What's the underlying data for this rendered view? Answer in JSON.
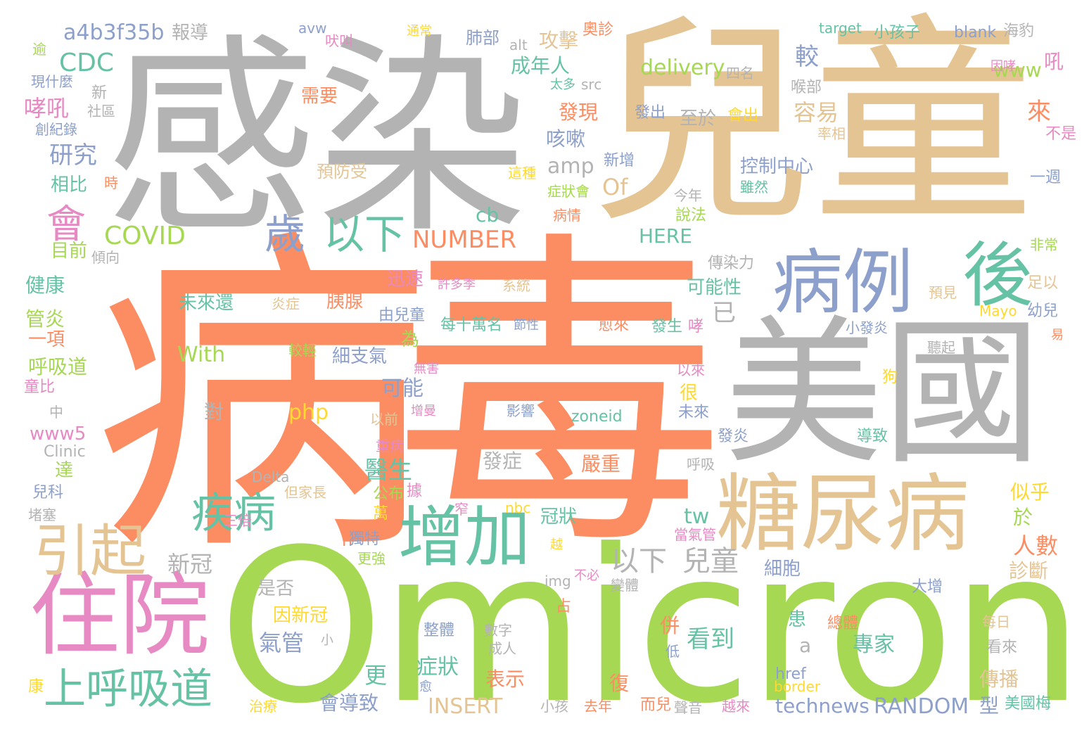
{
  "palette": {
    "orange": "#fc8d62",
    "green": "#a6d854",
    "grey": "#b3b3b3",
    "tan": "#e5c494",
    "teal": "#66c2a5",
    "blue": "#8da0cb",
    "pink": "#e78ac3",
    "yellow": "#ffd92f"
  },
  "words": [
    {
      "id": "bing",
      "text": "病",
      "color": "#fc8d62"
    },
    {
      "id": "du",
      "text": "毒",
      "color": "#fc8d62"
    },
    {
      "id": "ganran",
      "text": "感染",
      "color": "#b3b3b3"
    },
    {
      "id": "ertong",
      "text": "兒童",
      "color": "#e5c494"
    },
    {
      "id": "omicron",
      "text": "Omicron",
      "color": "#a6d854"
    },
    {
      "id": "meiguo",
      "text": "美國",
      "color": "#b3b3b3"
    },
    {
      "id": "zhuyuan",
      "text": "住院",
      "color": "#e78ac3"
    },
    {
      "id": "tangniaobing",
      "text": "糖尿病",
      "color": "#e5c494"
    },
    {
      "id": "bingli",
      "text": "病例",
      "color": "#8da0cb"
    },
    {
      "id": "hou",
      "text": "後",
      "color": "#66c2a5"
    },
    {
      "id": "zengjia",
      "text": "增加",
      "color": "#66c2a5"
    },
    {
      "id": "yinqi",
      "text": "引起",
      "color": "#e5c494"
    },
    {
      "id": "shanghuxidao",
      "text": "上呼吸道",
      "color": "#66c2a5"
    },
    {
      "id": "jibing",
      "text": "疾病",
      "color": "#66c2a5"
    },
    {
      "id": "sui",
      "text": "歲",
      "color": "#8da0cb"
    },
    {
      "id": "yixia1",
      "text": "以下",
      "color": "#66c2a5"
    },
    {
      "id": "hui",
      "text": "會",
      "color": "#e78ac3"
    },
    {
      "id": "covid",
      "text": "COVID",
      "color": "#a6d854"
    },
    {
      "id": "cdc",
      "text": "CDC",
      "color": "#66c2a5"
    },
    {
      "id": "a4b3",
      "text": "a4b3f35b",
      "color": "#8da0cb"
    },
    {
      "id": "baodao",
      "text": "報導",
      "color": "#b3b3b3"
    },
    {
      "id": "xiaochuan",
      "text": "哮吼",
      "color": "#e78ac3"
    },
    {
      "id": "yanjiu",
      "text": "研究",
      "color": "#8da0cb"
    },
    {
      "id": "xiangbi",
      "text": "相比",
      "color": "#66c2a5"
    },
    {
      "id": "mubiao",
      "text": "目前",
      "color": "#a6d854"
    },
    {
      "id": "jiankang",
      "text": "健康",
      "color": "#66c2a5"
    },
    {
      "id": "guanyan",
      "text": "管炎",
      "color": "#a6d854"
    },
    {
      "id": "yixiang",
      "text": "一項",
      "color": "#fc8d62"
    },
    {
      "id": "huxidao",
      "text": "呼吸道",
      "color": "#a6d854"
    },
    {
      "id": "tongbi",
      "text": "童比",
      "color": "#e78ac3"
    },
    {
      "id": "www5",
      "text": "www5",
      "color": "#e78ac3"
    },
    {
      "id": "clinic",
      "text": "Clinic",
      "color": "#b3b3b3"
    },
    {
      "id": "da",
      "text": "達",
      "color": "#a6d854"
    },
    {
      "id": "erke",
      "text": "兒科",
      "color": "#8da0cb"
    },
    {
      "id": "duse",
      "text": "堵塞",
      "color": "#b3b3b3"
    },
    {
      "id": "kang",
      "text": "康",
      "color": "#ffd92f"
    },
    {
      "id": "zhong",
      "text": "中",
      "color": "#b3b3b3"
    },
    {
      "id": "yu",
      "text": "逾",
      "color": "#a6d854"
    },
    {
      "id": "xianshenme",
      "text": "現什麼",
      "color": "#8da0cb"
    },
    {
      "id": "xin",
      "text": "新",
      "color": "#b3b3b3"
    },
    {
      "id": "shequ",
      "text": "社區",
      "color": "#b3b3b3"
    },
    {
      "id": "chuangjilu",
      "text": "創紀錄",
      "color": "#8da0cb"
    },
    {
      "id": "shi",
      "text": "時",
      "color": "#fc8d62"
    },
    {
      "id": "qingxiang",
      "text": "傾向",
      "color": "#b3b3b3"
    },
    {
      "id": "avw",
      "text": "avw",
      "color": "#8da0cb"
    },
    {
      "id": "feijiao",
      "text": "吠叫",
      "color": "#e78ac3"
    },
    {
      "id": "tongchang",
      "text": "通常",
      "color": "#ffd92f"
    },
    {
      "id": "feibu",
      "text": "肺部",
      "color": "#8da0cb"
    },
    {
      "id": "alt",
      "text": "alt",
      "color": "#b3b3b3"
    },
    {
      "id": "gongji",
      "text": "攻擊",
      "color": "#e5c494"
    },
    {
      "id": "aozhen",
      "text": "奧診",
      "color": "#fc8d62"
    },
    {
      "id": "chengnianren",
      "text": "成年人",
      "color": "#66c2a5"
    },
    {
      "id": "taiduo",
      "text": "太多",
      "color": "#66c2a5"
    },
    {
      "id": "src",
      "text": "src",
      "color": "#b3b3b3"
    },
    {
      "id": "faxian",
      "text": "發現",
      "color": "#fc8d62"
    },
    {
      "id": "xuyao",
      "text": "需要",
      "color": "#fc8d62"
    },
    {
      "id": "jiao",
      "text": "較",
      "color": "#8da0cb"
    },
    {
      "id": "delivery",
      "text": "delivery",
      "color": "#a6d854"
    },
    {
      "id": "siming",
      "text": "四名",
      "color": "#b3b3b3"
    },
    {
      "id": "houbu",
      "text": "喉部",
      "color": "#b3b3b3"
    },
    {
      "id": "rongyi",
      "text": "容易",
      "color": "#e5c494"
    },
    {
      "id": "zhiyu",
      "text": "至於",
      "color": "#b3b3b3"
    },
    {
      "id": "fachu",
      "text": "發出",
      "color": "#8da0cb"
    },
    {
      "id": "huichu",
      "text": "會出",
      "color": "#ffd92f"
    },
    {
      "id": "kesou",
      "text": "咳嗽",
      "color": "#8da0cb"
    },
    {
      "id": "amp",
      "text": "amp",
      "color": "#b3b3b3"
    },
    {
      "id": "yufangshou",
      "text": "預防受",
      "color": "#e5c494"
    },
    {
      "id": "zhezhong",
      "text": "這種",
      "color": "#ffd92f"
    },
    {
      "id": "xinzeng",
      "text": "新增",
      "color": "#8da0cb"
    },
    {
      "id": "zhuangzhuanghui",
      "text": "症狀會",
      "color": "#a6d854"
    },
    {
      "id": "kongzhi",
      "text": "控制中心",
      "color": "#8da0cb"
    },
    {
      "id": "suiran",
      "text": "雖然",
      "color": "#66c2a5"
    },
    {
      "id": "of",
      "text": "Of",
      "color": "#e5c494"
    },
    {
      "id": "cb",
      "text": "cb",
      "color": "#66c2a5"
    },
    {
      "id": "jinnian",
      "text": "今年",
      "color": "#b3b3b3"
    },
    {
      "id": "shuofa",
      "text": "說法",
      "color": "#a6d854"
    },
    {
      "id": "bingqing",
      "text": "病情",
      "color": "#fc8d62"
    },
    {
      "id": "number",
      "text": "NUMBER",
      "color": "#fc8d62"
    },
    {
      "id": "here",
      "text": "HERE",
      "color": "#66c2a5"
    },
    {
      "id": "www",
      "text": "www",
      "color": "#a6d854"
    },
    {
      "id": "lai",
      "text": "來",
      "color": "#fc8d62"
    },
    {
      "id": "hou2",
      "text": "吼",
      "color": "#e78ac3"
    },
    {
      "id": "yinxiao",
      "text": "因哮",
      "color": "#e78ac3"
    },
    {
      "id": "lvxiang",
      "text": "率相",
      "color": "#e5c494"
    },
    {
      "id": "bushi",
      "text": "不是",
      "color": "#e78ac3"
    },
    {
      "id": "yizhou",
      "text": "一週",
      "color": "#8da0cb"
    },
    {
      "id": "target",
      "text": "target",
      "color": "#66c2a5"
    },
    {
      "id": "xiaohaizi",
      "text": "小孩子",
      "color": "#66c2a5"
    },
    {
      "id": "blank",
      "text": "blank",
      "color": "#8da0cb"
    },
    {
      "id": "haibao",
      "text": "海豹",
      "color": "#b3b3b3"
    },
    {
      "id": "weilaihuan",
      "text": "未來還",
      "color": "#66c2a5"
    },
    {
      "id": "yanzheng",
      "text": "炎症",
      "color": "#e5c494"
    },
    {
      "id": "yixian",
      "text": "胰腺",
      "color": "#fc8d62"
    },
    {
      "id": "xunsu",
      "text": "迅速",
      "color": "#e78ac3"
    },
    {
      "id": "keneng",
      "text": "可能性",
      "color": "#66c2a5"
    },
    {
      "id": "yi",
      "text": "已",
      "color": "#b3b3b3"
    },
    {
      "id": "chuanranli",
      "text": "傳染力",
      "color": "#b3b3b3"
    },
    {
      "id": "feichang",
      "text": "非常",
      "color": "#a6d854"
    },
    {
      "id": "yujian",
      "text": "預見",
      "color": "#e5c494"
    },
    {
      "id": "zuyi",
      "text": "足以",
      "color": "#e5c494"
    },
    {
      "id": "mayo",
      "text": "Mayo",
      "color": "#ffd92f"
    },
    {
      "id": "youer",
      "text": "幼兒",
      "color": "#8da0cb"
    },
    {
      "id": "xuduo",
      "text": "許多季",
      "color": "#e78ac3"
    },
    {
      "id": "xitong",
      "text": "系統",
      "color": "#e5c494"
    },
    {
      "id": "huan",
      "text": "還",
      "color": "#a6d854"
    },
    {
      "id": "youertong",
      "text": "由兒童",
      "color": "#8da0cb"
    },
    {
      "id": "meishiwan",
      "text": "每十萬名",
      "color": "#66c2a5"
    },
    {
      "id": "jiexing",
      "text": "節性",
      "color": "#8da0cb"
    },
    {
      "id": "yulai",
      "text": "愈來",
      "color": "#fc8d62"
    },
    {
      "id": "fasheng",
      "text": "發生",
      "color": "#66c2a5"
    },
    {
      "id": "xiao",
      "text": "哮",
      "color": "#e78ac3"
    },
    {
      "id": "xiaofayan",
      "text": "小發炎",
      "color": "#8da0cb"
    },
    {
      "id": "yi2",
      "text": "易",
      "color": "#fc8d62"
    },
    {
      "id": "tingqi",
      "text": "聽起",
      "color": "#b3b3b3"
    },
    {
      "id": "wei",
      "text": "為",
      "color": "#a6d854"
    },
    {
      "id": "xizhiqi",
      "text": "細支氣",
      "color": "#8da0cb"
    },
    {
      "id": "jiaoqing",
      "text": "較輕",
      "color": "#a6d854"
    },
    {
      "id": "with",
      "text": "With",
      "color": "#a6d854"
    },
    {
      "id": "wuhai",
      "text": "無害",
      "color": "#e78ac3"
    },
    {
      "id": "yilai",
      "text": "以來",
      "color": "#e78ac3"
    },
    {
      "id": "hen",
      "text": "很",
      "color": "#ffd92f"
    },
    {
      "id": "gou",
      "text": "狗",
      "color": "#ffd92f"
    },
    {
      "id": "keneng2",
      "text": "可能",
      "color": "#8da0cb"
    },
    {
      "id": "php",
      "text": "php",
      "color": "#ffd92f"
    },
    {
      "id": "dui",
      "text": "對",
      "color": "#b3b3b3"
    },
    {
      "id": "zengman",
      "text": "增曼",
      "color": "#e78ac3"
    },
    {
      "id": "yingxiang",
      "text": "影響",
      "color": "#8da0cb"
    },
    {
      "id": "zoneid",
      "text": "zoneid",
      "color": "#66c2a5"
    },
    {
      "id": "weilai",
      "text": "未來",
      "color": "#8da0cb"
    },
    {
      "id": "yiqian",
      "text": "以前",
      "color": "#e5c494"
    },
    {
      "id": "zhongbing",
      "text": "重病",
      "color": "#e78ac3"
    },
    {
      "id": "yisheng",
      "text": "醫生",
      "color": "#66c2a5"
    },
    {
      "id": "fazheng",
      "text": "發症",
      "color": "#b3b3b3"
    },
    {
      "id": "yanzhong",
      "text": "嚴重",
      "color": "#fc8d62"
    },
    {
      "id": "huxi",
      "text": "呼吸",
      "color": "#b3b3b3"
    },
    {
      "id": "fayan",
      "text": "發炎",
      "color": "#8da0cb"
    },
    {
      "id": "daozhi",
      "text": "導致",
      "color": "#66c2a5"
    },
    {
      "id": "dankezhang",
      "text": "但家長",
      "color": "#e5c494"
    },
    {
      "id": "delta",
      "text": "Delta",
      "color": "#b3b3b3"
    },
    {
      "id": "gongbu",
      "text": "公布",
      "color": "#a6d854"
    },
    {
      "id": "ju",
      "text": "據",
      "color": "#e78ac3"
    },
    {
      "id": "ck",
      "text": "ck",
      "color": "#fc8d62"
    },
    {
      "id": "nbc",
      "text": "nbc",
      "color": "#ffd92f"
    },
    {
      "id": "guanzhuang",
      "text": "冠狀",
      "color": "#66c2a5"
    },
    {
      "id": "tw",
      "text": "tw",
      "color": "#66c2a5"
    },
    {
      "id": "dangqiguan",
      "text": "當氣管",
      "color": "#e78ac3"
    },
    {
      "id": "sibei",
      "text": "三倍",
      "color": "#e78ac3"
    },
    {
      "id": "wan",
      "text": "萬",
      "color": "#ffd92f"
    },
    {
      "id": "zhai",
      "text": "窄",
      "color": "#e78ac3"
    },
    {
      "id": "n",
      "text": "n",
      "color": "#fc8d62"
    },
    {
      "id": "dute",
      "text": "獨特",
      "color": "#8da0cb"
    },
    {
      "id": "gengqiang",
      "text": "更強",
      "color": "#a6d854"
    },
    {
      "id": "yue",
      "text": "越",
      "color": "#ffd92f"
    },
    {
      "id": "yixia2",
      "text": "以下",
      "color": "#b3b3b3"
    },
    {
      "id": "ertong2",
      "text": "兒童",
      "color": "#b3b3b3"
    },
    {
      "id": "xinguan",
      "text": "新冠",
      "color": "#b3b3b3"
    },
    {
      "id": "xibao",
      "text": "細胞",
      "color": "#8da0cb"
    },
    {
      "id": "sihu",
      "text": "似乎",
      "color": "#ffd92f"
    },
    {
      "id": "yu2",
      "text": "於",
      "color": "#a6d854"
    },
    {
      "id": "renshu",
      "text": "人數",
      "color": "#fc8d62"
    },
    {
      "id": "zhenduan",
      "text": "診斷",
      "color": "#e5c494"
    },
    {
      "id": "dazeng",
      "text": "大增",
      "color": "#8da0cb"
    },
    {
      "id": "shifou",
      "text": "是否",
      "color": "#b3b3b3"
    },
    {
      "id": "yinxinguan",
      "text": "因新冠",
      "color": "#ffd92f"
    },
    {
      "id": "qiguan",
      "text": "氣管",
      "color": "#8da0cb"
    },
    {
      "id": "img",
      "text": "img",
      "color": "#b3b3b3"
    },
    {
      "id": "bubi",
      "text": "不必",
      "color": "#e78ac3"
    },
    {
      "id": "bianti",
      "text": "變體",
      "color": "#b3b3b3"
    },
    {
      "id": "zhan",
      "text": "占",
      "color": "#fc8d62"
    },
    {
      "id": "huan2",
      "text": "患",
      "color": "#66c2a5"
    },
    {
      "id": "bing2",
      "text": "併",
      "color": "#fc8d62"
    },
    {
      "id": "kandao",
      "text": "看到",
      "color": "#66c2a5"
    },
    {
      "id": "zhuanjia",
      "text": "專家",
      "color": "#66c2a5"
    },
    {
      "id": "a",
      "text": "a",
      "color": "#b3b3b3"
    },
    {
      "id": "di",
      "text": "低",
      "color": "#8da0cb"
    },
    {
      "id": "zhengti",
      "text": "整體",
      "color": "#8da0cb"
    },
    {
      "id": "shuzi",
      "text": "數字",
      "color": "#b3b3b3"
    },
    {
      "id": "chengren",
      "text": "成人",
      "color": "#b3b3b3"
    },
    {
      "id": "xiao2",
      "text": "小",
      "color": "#b3b3b3"
    },
    {
      "id": "geng",
      "text": "更",
      "color": "#66c2a5"
    },
    {
      "id": "zhengzhuang",
      "text": "症狀",
      "color": "#66c2a5"
    },
    {
      "id": "zongti",
      "text": "總體",
      "color": "#fc8d62"
    },
    {
      "id": "meiri",
      "text": "每日",
      "color": "#e5c494"
    },
    {
      "id": "kanlai",
      "text": "看來",
      "color": "#b3b3b3"
    },
    {
      "id": "href",
      "text": "href",
      "color": "#8da0cb"
    },
    {
      "id": "border",
      "text": "border",
      "color": "#ffd92f"
    },
    {
      "id": "biaoshi",
      "text": "表示",
      "color": "#fc8d62"
    },
    {
      "id": "fu",
      "text": "復",
      "color": "#fc8d62"
    },
    {
      "id": "chuanbo",
      "text": "傳播",
      "color": "#e5c494"
    },
    {
      "id": "huidaozhi",
      "text": "會導致",
      "color": "#8da0cb"
    },
    {
      "id": "insert",
      "text": "INSERT",
      "color": "#e5c494"
    },
    {
      "id": "xiaohai",
      "text": "小孩",
      "color": "#b3b3b3"
    },
    {
      "id": "qunian",
      "text": "去年",
      "color": "#fc8d62"
    },
    {
      "id": "erer",
      "text": "而兒",
      "color": "#fc8d62"
    },
    {
      "id": "shengyin",
      "text": "聲音",
      "color": "#b3b3b3"
    },
    {
      "id": "yuelai",
      "text": "越來",
      "color": "#e78ac3"
    },
    {
      "id": "technews",
      "text": "technews",
      "color": "#8da0cb"
    },
    {
      "id": "random",
      "text": "RANDOM",
      "color": "#8da0cb"
    },
    {
      "id": "xing",
      "text": "型",
      "color": "#8da0cb"
    },
    {
      "id": "meiguomei",
      "text": "美國梅",
      "color": "#66c2a5"
    },
    {
      "id": "zhiliao",
      "text": "治療",
      "color": "#ffd92f"
    },
    {
      "id": "yu3",
      "text": "愈",
      "color": "#8da0cb"
    }
  ]
}
